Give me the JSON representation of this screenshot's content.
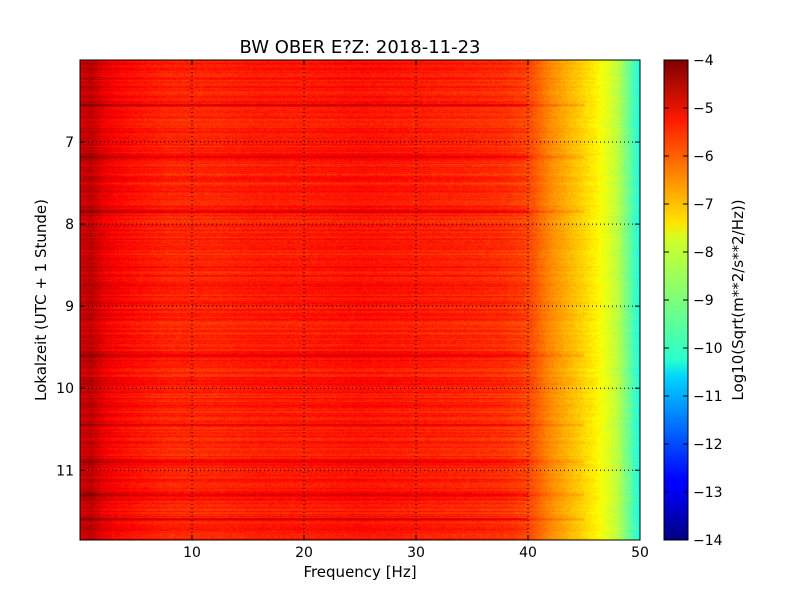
{
  "chart_data": {
    "type": "heatmap",
    "title": "BW OBER E?Z: 2018-11-23",
    "xlabel": "Frequency [Hz]",
    "ylabel": "Lokalzeit (UTC + 1 Stunde)",
    "xlim": [
      0,
      50
    ],
    "ylim": [
      6.0,
      11.85
    ],
    "y_inverted": true,
    "x_ticks": [
      10,
      20,
      30,
      40,
      50
    ],
    "y_ticks": [
      7,
      8,
      9,
      10,
      11
    ],
    "grid": true,
    "colormap": "jet",
    "colorbar": {
      "label": "Log10(Sqrt(m**2/s**2/Hz))",
      "range": [
        -14,
        -4
      ],
      "ticks": [
        -4,
        -5,
        -6,
        -7,
        -8,
        -9,
        -10,
        -11,
        -12,
        -13,
        -14
      ]
    },
    "frequency_profile": {
      "frequencies": [
        0,
        1,
        2,
        3,
        5,
        8,
        12,
        16,
        20,
        25,
        30,
        35,
        38,
        40,
        42,
        44,
        46,
        48,
        50
      ],
      "log10_amplitude": [
        -4.8,
        -4.6,
        -5.0,
        -5.2,
        -5.4,
        -5.6,
        -5.6,
        -5.5,
        -5.5,
        -5.4,
        -5.5,
        -5.6,
        -5.7,
        -5.9,
        -6.6,
        -7.1,
        -7.6,
        -8.4,
        -10.0
      ]
    },
    "strong_bands_time": [
      6.55,
      7.18,
      7.85,
      9.6,
      10.45,
      10.9,
      11.3,
      11.6
    ]
  }
}
